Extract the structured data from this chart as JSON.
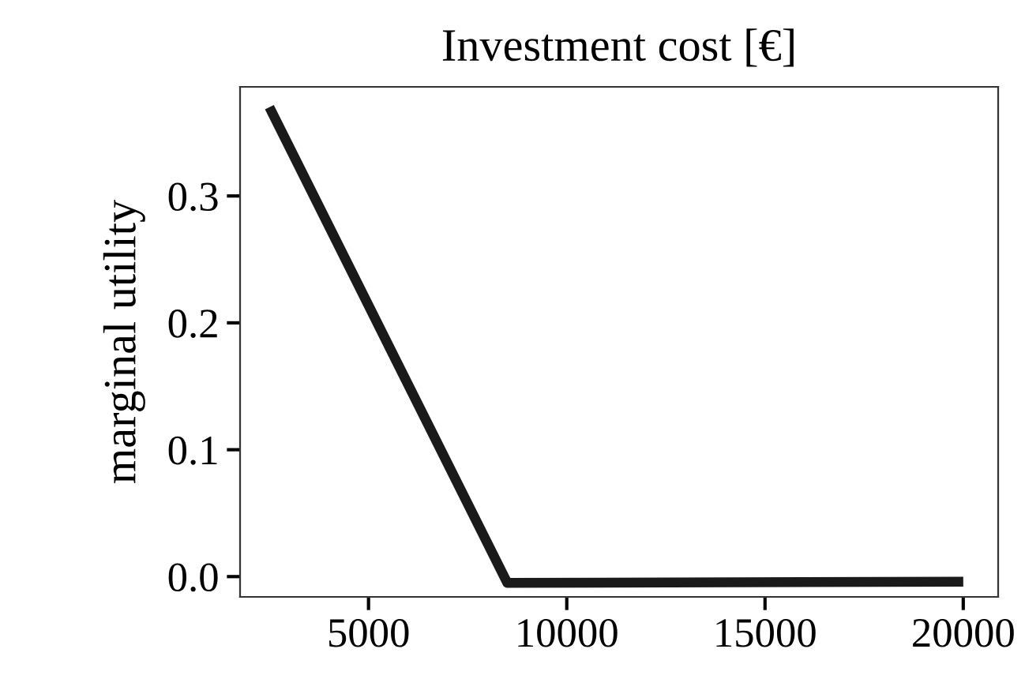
{
  "chart_data": {
    "type": "line",
    "title": "Investment cost [€]",
    "ylabel": "marginal utility",
    "x": [
      2500,
      8500,
      20000
    ],
    "series": [
      {
        "color": "#1a1a1a",
        "values": [
          0.37,
          -0.005,
          -0.004
        ]
      }
    ],
    "xlim": [
      1760,
      20880
    ],
    "ylim": [
      -0.016,
      0.386
    ],
    "xticks": [
      5000,
      10000,
      15000,
      20000
    ],
    "yticks": [
      {
        "value": 0.0,
        "label": "0.0"
      },
      {
        "value": 0.1,
        "label": "0.1"
      },
      {
        "value": 0.2,
        "label": "0.2"
      },
      {
        "value": 0.3,
        "label": "0.3"
      }
    ],
    "grid": false,
    "marker": "none",
    "line_style": "solid"
  }
}
